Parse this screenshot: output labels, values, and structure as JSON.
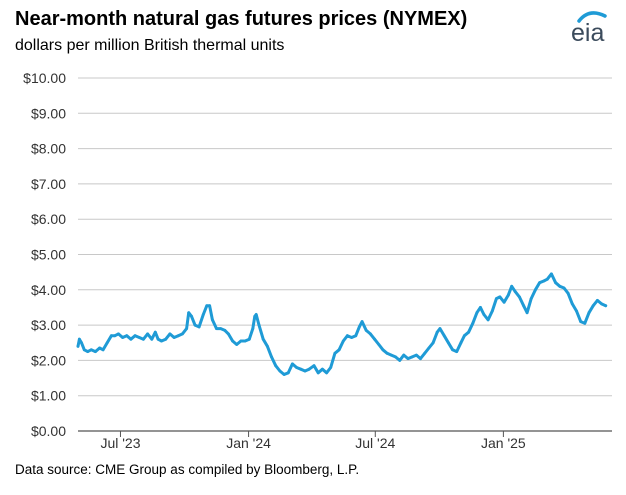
{
  "header": {
    "title": "Near-month natural gas futures prices (NYMEX)",
    "subtitle": "dollars per million British thermal units",
    "logo_text": "eia"
  },
  "footer": {
    "source": "Data source: CME Group as compiled by Bloomberg, L.P."
  },
  "colors": {
    "series": "#1f9bd6",
    "grid": "#c8c8c8",
    "axis": "#555555",
    "logo_arc": "#1f9bd6"
  },
  "chart_data": {
    "type": "line",
    "title": "Near-month natural gas futures prices (NYMEX)",
    "ylabel": "dollars per million British thermal units",
    "ylim": [
      0,
      10
    ],
    "xlim": [
      "2023-05-01",
      "2025-06-06"
    ],
    "yticks": [
      "$0.00",
      "$1.00",
      "$2.00",
      "$3.00",
      "$4.00",
      "$5.00",
      "$6.00",
      "$7.00",
      "$8.00",
      "$9.00",
      "$10.00"
    ],
    "xticks": [
      {
        "date": "2023-07-01",
        "label": "Jul '23"
      },
      {
        "date": "2024-01-01",
        "label": "Jan '24"
      },
      {
        "date": "2024-07-01",
        "label": "Jul '24"
      },
      {
        "date": "2025-01-01",
        "label": "Jan '25"
      }
    ],
    "grid": true,
    "series": [
      {
        "points": [
          [
            "2023-05-01",
            2.4
          ],
          [
            "2023-05-03",
            2.6
          ],
          [
            "2023-05-06",
            2.5
          ],
          [
            "2023-05-10",
            2.3
          ],
          [
            "2023-05-15",
            2.25
          ],
          [
            "2023-05-20",
            2.3
          ],
          [
            "2023-05-26",
            2.25
          ],
          [
            "2023-06-01",
            2.35
          ],
          [
            "2023-06-06",
            2.3
          ],
          [
            "2023-06-12",
            2.5
          ],
          [
            "2023-06-18",
            2.7
          ],
          [
            "2023-06-23",
            2.7
          ],
          [
            "2023-06-28",
            2.75
          ],
          [
            "2023-07-04",
            2.65
          ],
          [
            "2023-07-10",
            2.7
          ],
          [
            "2023-07-16",
            2.6
          ],
          [
            "2023-07-22",
            2.7
          ],
          [
            "2023-07-28",
            2.65
          ],
          [
            "2023-08-03",
            2.6
          ],
          [
            "2023-08-09",
            2.75
          ],
          [
            "2023-08-15",
            2.6
          ],
          [
            "2023-08-20",
            2.8
          ],
          [
            "2023-08-24",
            2.6
          ],
          [
            "2023-08-29",
            2.55
          ],
          [
            "2023-09-04",
            2.6
          ],
          [
            "2023-09-10",
            2.75
          ],
          [
            "2023-09-16",
            2.65
          ],
          [
            "2023-09-22",
            2.7
          ],
          [
            "2023-09-28",
            2.75
          ],
          [
            "2023-10-04",
            2.9
          ],
          [
            "2023-10-07",
            3.35
          ],
          [
            "2023-10-11",
            3.25
          ],
          [
            "2023-10-16",
            3.0
          ],
          [
            "2023-10-22",
            2.95
          ],
          [
            "2023-10-28",
            3.3
          ],
          [
            "2023-11-02",
            3.55
          ],
          [
            "2023-11-06",
            3.55
          ],
          [
            "2023-11-10",
            3.15
          ],
          [
            "2023-11-16",
            2.9
          ],
          [
            "2023-11-22",
            2.9
          ],
          [
            "2023-11-28",
            2.85
          ],
          [
            "2023-12-03",
            2.75
          ],
          [
            "2023-12-09",
            2.55
          ],
          [
            "2023-12-15",
            2.45
          ],
          [
            "2023-12-21",
            2.55
          ],
          [
            "2023-12-27",
            2.55
          ],
          [
            "2024-01-02",
            2.6
          ],
          [
            "2024-01-07",
            2.9
          ],
          [
            "2024-01-10",
            3.25
          ],
          [
            "2024-01-12",
            3.3
          ],
          [
            "2024-01-16",
            3.0
          ],
          [
            "2024-01-22",
            2.6
          ],
          [
            "2024-01-28",
            2.4
          ],
          [
            "2024-02-03",
            2.1
          ],
          [
            "2024-02-09",
            1.85
          ],
          [
            "2024-02-15",
            1.7
          ],
          [
            "2024-02-21",
            1.6
          ],
          [
            "2024-02-27",
            1.65
          ],
          [
            "2024-03-04",
            1.9
          ],
          [
            "2024-03-10",
            1.8
          ],
          [
            "2024-03-16",
            1.75
          ],
          [
            "2024-03-22",
            1.7
          ],
          [
            "2024-03-28",
            1.75
          ],
          [
            "2024-04-04",
            1.85
          ],
          [
            "2024-04-10",
            1.65
          ],
          [
            "2024-04-16",
            1.75
          ],
          [
            "2024-04-22",
            1.65
          ],
          [
            "2024-04-28",
            1.8
          ],
          [
            "2024-05-04",
            2.2
          ],
          [
            "2024-05-10",
            2.3
          ],
          [
            "2024-05-16",
            2.55
          ],
          [
            "2024-05-22",
            2.7
          ],
          [
            "2024-05-28",
            2.65
          ],
          [
            "2024-06-03",
            2.7
          ],
          [
            "2024-06-08",
            2.95
          ],
          [
            "2024-06-12",
            3.1
          ],
          [
            "2024-06-18",
            2.85
          ],
          [
            "2024-06-24",
            2.75
          ],
          [
            "2024-06-30",
            2.6
          ],
          [
            "2024-07-06",
            2.45
          ],
          [
            "2024-07-12",
            2.3
          ],
          [
            "2024-07-18",
            2.2
          ],
          [
            "2024-07-24",
            2.15
          ],
          [
            "2024-07-30",
            2.1
          ],
          [
            "2024-08-05",
            2.0
          ],
          [
            "2024-08-11",
            2.15
          ],
          [
            "2024-08-17",
            2.05
          ],
          [
            "2024-08-23",
            2.1
          ],
          [
            "2024-08-29",
            2.15
          ],
          [
            "2024-09-04",
            2.05
          ],
          [
            "2024-09-10",
            2.2
          ],
          [
            "2024-09-16",
            2.35
          ],
          [
            "2024-09-22",
            2.5
          ],
          [
            "2024-09-28",
            2.8
          ],
          [
            "2024-10-02",
            2.9
          ],
          [
            "2024-10-08",
            2.7
          ],
          [
            "2024-10-14",
            2.5
          ],
          [
            "2024-10-20",
            2.3
          ],
          [
            "2024-10-26",
            2.25
          ],
          [
            "2024-11-01",
            2.5
          ],
          [
            "2024-11-06",
            2.7
          ],
          [
            "2024-11-12",
            2.8
          ],
          [
            "2024-11-18",
            3.05
          ],
          [
            "2024-11-24",
            3.35
          ],
          [
            "2024-11-29",
            3.5
          ],
          [
            "2024-12-04",
            3.3
          ],
          [
            "2024-12-10",
            3.15
          ],
          [
            "2024-12-16",
            3.4
          ],
          [
            "2024-12-22",
            3.75
          ],
          [
            "2024-12-27",
            3.8
          ],
          [
            "2025-01-02",
            3.65
          ],
          [
            "2025-01-08",
            3.85
          ],
          [
            "2025-01-13",
            4.1
          ],
          [
            "2025-01-18",
            3.95
          ],
          [
            "2025-01-24",
            3.8
          ],
          [
            "2025-01-30",
            3.55
          ],
          [
            "2025-02-04",
            3.35
          ],
          [
            "2025-02-10",
            3.75
          ],
          [
            "2025-02-16",
            4.0
          ],
          [
            "2025-02-22",
            4.2
          ],
          [
            "2025-02-28",
            4.25
          ],
          [
            "2025-03-05",
            4.3
          ],
          [
            "2025-03-11",
            4.45
          ],
          [
            "2025-03-17",
            4.2
          ],
          [
            "2025-03-23",
            4.1
          ],
          [
            "2025-03-29",
            4.05
          ],
          [
            "2025-04-04",
            3.9
          ],
          [
            "2025-04-10",
            3.6
          ],
          [
            "2025-04-16",
            3.4
          ],
          [
            "2025-04-22",
            3.1
          ],
          [
            "2025-04-28",
            3.05
          ],
          [
            "2025-05-04",
            3.35
          ],
          [
            "2025-05-10",
            3.55
          ],
          [
            "2025-05-16",
            3.7
          ],
          [
            "2025-05-22",
            3.6
          ],
          [
            "2025-05-28",
            3.55
          ]
        ]
      }
    ]
  }
}
